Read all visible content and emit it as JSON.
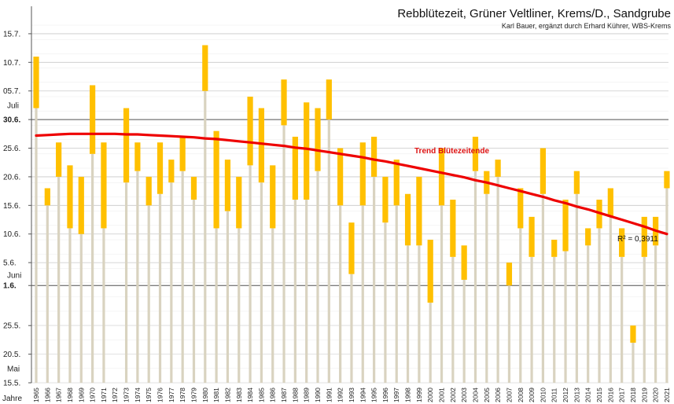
{
  "chart_data": {
    "type": "bar",
    "title": "Rebblütezeit, Grüner Veltliner, Krems/D., Sandgrube",
    "subtitle": "Karl Bauer, ergänzt durch Erhard Kührer, WBS-Krems",
    "xlabel": "Jahre",
    "y_ticks": [
      {
        "label": "15.7.",
        "day": 76
      },
      {
        "label": "10.7.",
        "day": 71
      },
      {
        "label": "05.7.",
        "day": 66
      },
      {
        "label": "30.6.",
        "day": 61,
        "bold": true
      },
      {
        "label": "25.6.",
        "day": 56
      },
      {
        "label": "20.6.",
        "day": 51
      },
      {
        "label": "15.6.",
        "day": 46
      },
      {
        "label": "10.6.",
        "day": 41
      },
      {
        "label": "5.6.",
        "day": 36
      },
      {
        "label": "1.6.",
        "day": 32,
        "bold": true
      },
      {
        "label": "25.5.",
        "day": 25
      },
      {
        "label": "20.5.",
        "day": 20
      },
      {
        "label": "15.5.",
        "day": 15
      }
    ],
    "month_labels": [
      {
        "label": "Juli",
        "day": 63.5
      },
      {
        "label": "Juni",
        "day": 33.8
      },
      {
        "label": "Mai",
        "day": 17.5
      }
    ],
    "ylim_day": [
      15,
      78
    ],
    "day_reference": "day 0 = 30 April",
    "years": [
      1965,
      1966,
      1967,
      1968,
      1969,
      1970,
      1971,
      1972,
      1973,
      1974,
      1975,
      1976,
      1977,
      1978,
      1979,
      1980,
      1981,
      1982,
      1983,
      1984,
      1985,
      1986,
      1987,
      1988,
      1989,
      1990,
      1991,
      1992,
      1993,
      1994,
      1995,
      1996,
      1997,
      1998,
      1999,
      2000,
      2001,
      2002,
      2003,
      2004,
      2005,
      2006,
      2007,
      2008,
      2009,
      2010,
      2011,
      2012,
      2013,
      2014,
      2015,
      2016,
      2017,
      2018,
      2019,
      2020,
      2021
    ],
    "bloom_start": [
      63,
      46,
      51,
      42,
      41,
      55,
      42,
      null,
      50,
      52,
      46,
      48,
      50,
      52,
      47,
      66,
      42,
      45,
      42,
      53,
      50,
      42,
      60,
      47,
      47,
      52,
      61,
      46,
      34,
      46,
      51,
      43,
      46,
      39,
      39,
      29,
      46,
      37,
      33,
      52,
      48,
      51,
      32,
      42,
      37,
      48,
      37,
      38,
      48,
      39,
      42,
      44,
      37,
      22,
      37,
      39,
      49
    ],
    "bloom_end": [
      72,
      49,
      57,
      53,
      51,
      67,
      57,
      null,
      63,
      57,
      51,
      57,
      54,
      58,
      51,
      74,
      59,
      54,
      51,
      65,
      63,
      53,
      68,
      58,
      64,
      63,
      68,
      56,
      43,
      57,
      58,
      51,
      54,
      48,
      51,
      40,
      56,
      47,
      39,
      58,
      52,
      54,
      36,
      49,
      44,
      56,
      40,
      47,
      52,
      42,
      47,
      49,
      42,
      25,
      44,
      44,
      52
    ],
    "trend": {
      "label": "Trend Blütezeitende",
      "r2": "R² = 0,3911",
      "values": [
        58.2,
        58.3,
        58.4,
        58.5,
        58.5,
        58.5,
        58.5,
        58.5,
        58.4,
        58.4,
        58.3,
        58.2,
        58.1,
        58.0,
        57.9,
        57.7,
        57.6,
        57.4,
        57.2,
        57.0,
        56.8,
        56.6,
        56.4,
        56.1,
        55.9,
        55.6,
        55.3,
        55.0,
        54.7,
        54.4,
        54.0,
        53.7,
        53.3,
        52.9,
        52.5,
        52.1,
        51.7,
        51.3,
        50.9,
        50.4,
        50.0,
        49.5,
        49.0,
        48.5,
        48.0,
        47.5,
        46.9,
        46.4,
        45.8,
        45.3,
        44.7,
        44.1,
        43.5,
        42.9,
        42.3,
        41.6,
        41.0
      ]
    },
    "colors": {
      "bar": "#FFC000",
      "stem": "#D9D3C0",
      "trend": "#EE0000",
      "grid": "#C9C9C9",
      "refline": "#505050"
    },
    "grid": true
  }
}
